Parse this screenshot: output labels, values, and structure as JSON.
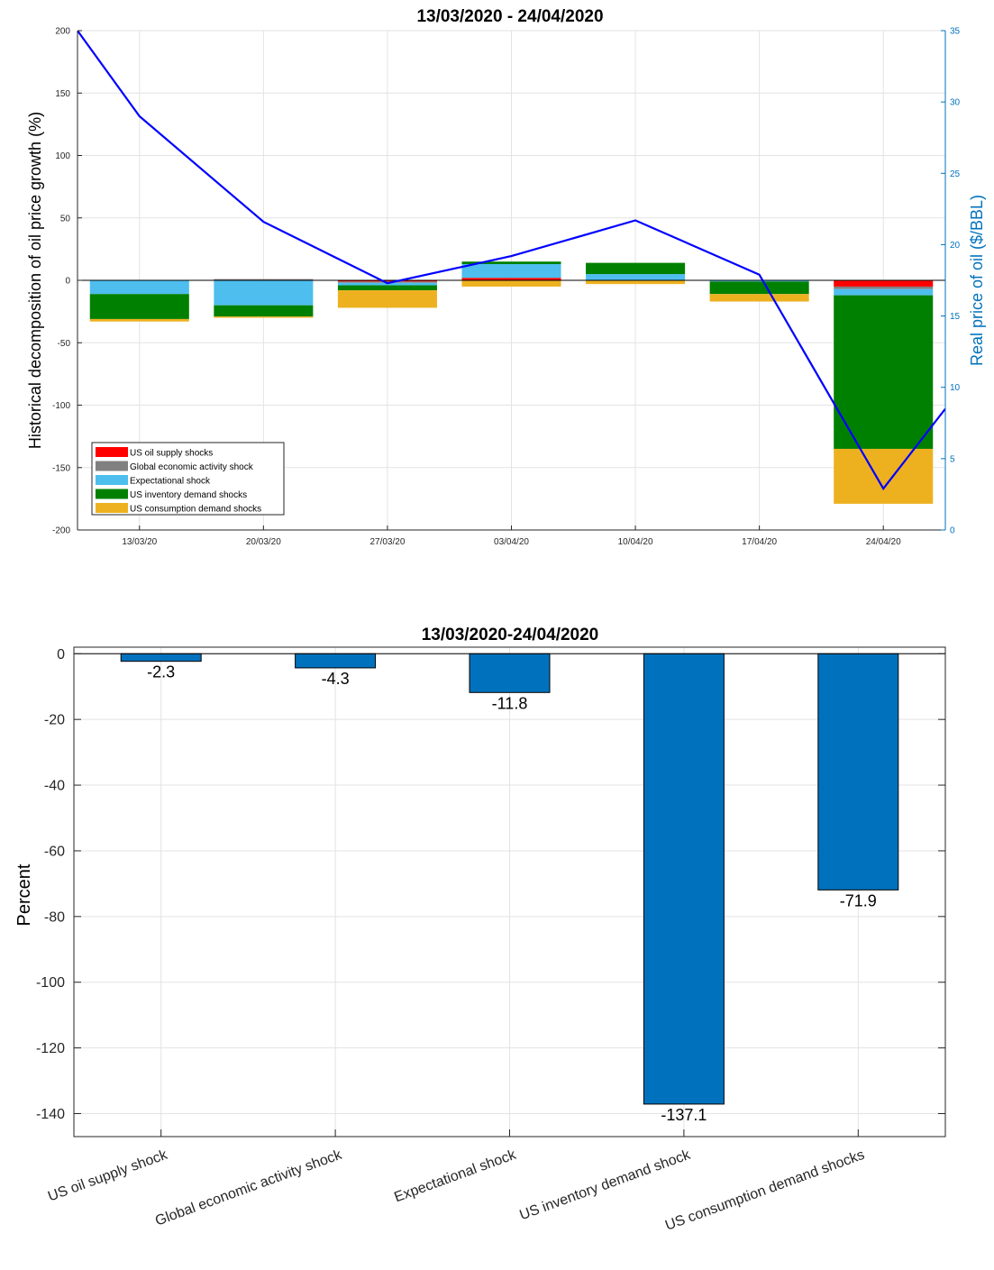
{
  "chart_data": [
    {
      "type": "bar",
      "stacked": true,
      "title": "13/03/2020 - 24/04/2020",
      "ylabel": "Historical decomposition of oil price growth (%)",
      "y2label": "Real price of oil ($/BBL)",
      "ylim": [
        -200,
        200
      ],
      "y2lim": [
        0,
        35
      ],
      "yticks": [
        "200",
        "150",
        "100",
        "50",
        "0",
        "-50",
        "-100",
        "-150",
        "-200"
      ],
      "y2ticks": [
        "35",
        "30",
        "25",
        "20",
        "15",
        "10",
        "5",
        "0"
      ],
      "categories": [
        "13/03/20",
        "20/03/20",
        "27/03/20",
        "03/04/20",
        "10/04/20",
        "17/04/20",
        "24/04/20"
      ],
      "series": [
        {
          "name": "US oil supply shocks",
          "color": "#ff0000",
          "values": [
            0,
            0.5,
            -1,
            2,
            0,
            0,
            -5
          ]
        },
        {
          "name": "Global economic activity shock",
          "color": "#808080",
          "values": [
            0,
            0.5,
            -1,
            0,
            0,
            0,
            -2
          ]
        },
        {
          "name": "Expectational shock",
          "color": "#4dbeee",
          "values": [
            -11,
            -20,
            -2,
            11,
            5,
            -1,
            -5
          ]
        },
        {
          "name": "US inventory demand shocks",
          "color": "#008000",
          "values": [
            -20,
            -9,
            -4,
            2,
            9,
            -10,
            -123
          ]
        },
        {
          "name": "US consumption demand shocks",
          "color": "#edb120",
          "values": [
            -2,
            -1,
            -14,
            -5,
            -3,
            -6,
            -44
          ]
        }
      ],
      "line": {
        "name": "Real price of oil ($/BBL)",
        "color": "#0000ff",
        "x": [
          0,
          0.5,
          1.5,
          2.5,
          3.5,
          4.5,
          5.5,
          6.5,
          7
        ],
        "values": [
          35,
          29,
          21.6,
          17.3,
          19.2,
          21.7,
          17.9,
          2.9,
          8.5
        ]
      },
      "legend_position": "lower-left",
      "grid": true
    },
    {
      "type": "bar",
      "title": "13/03/2020-24/04/2020",
      "ylabel": "Percent",
      "ylim": [
        -147,
        2
      ],
      "yticks": [
        "0",
        "-20",
        "-40",
        "-60",
        "-80",
        "-100",
        "-120",
        "-140"
      ],
      "categories": [
        "US oil supply shock",
        "Global economic activity shock",
        "Expectational shock",
        "US inventory demand shock",
        "US consumption demand shocks"
      ],
      "values": [
        -2.3,
        -4.3,
        -11.8,
        -137.1,
        -71.9
      ],
      "value_labels": [
        "-2.3",
        "-4.3",
        "-11.8",
        "-137.1",
        "-71.9"
      ],
      "bar_color": "#0072bd",
      "grid": true
    }
  ]
}
